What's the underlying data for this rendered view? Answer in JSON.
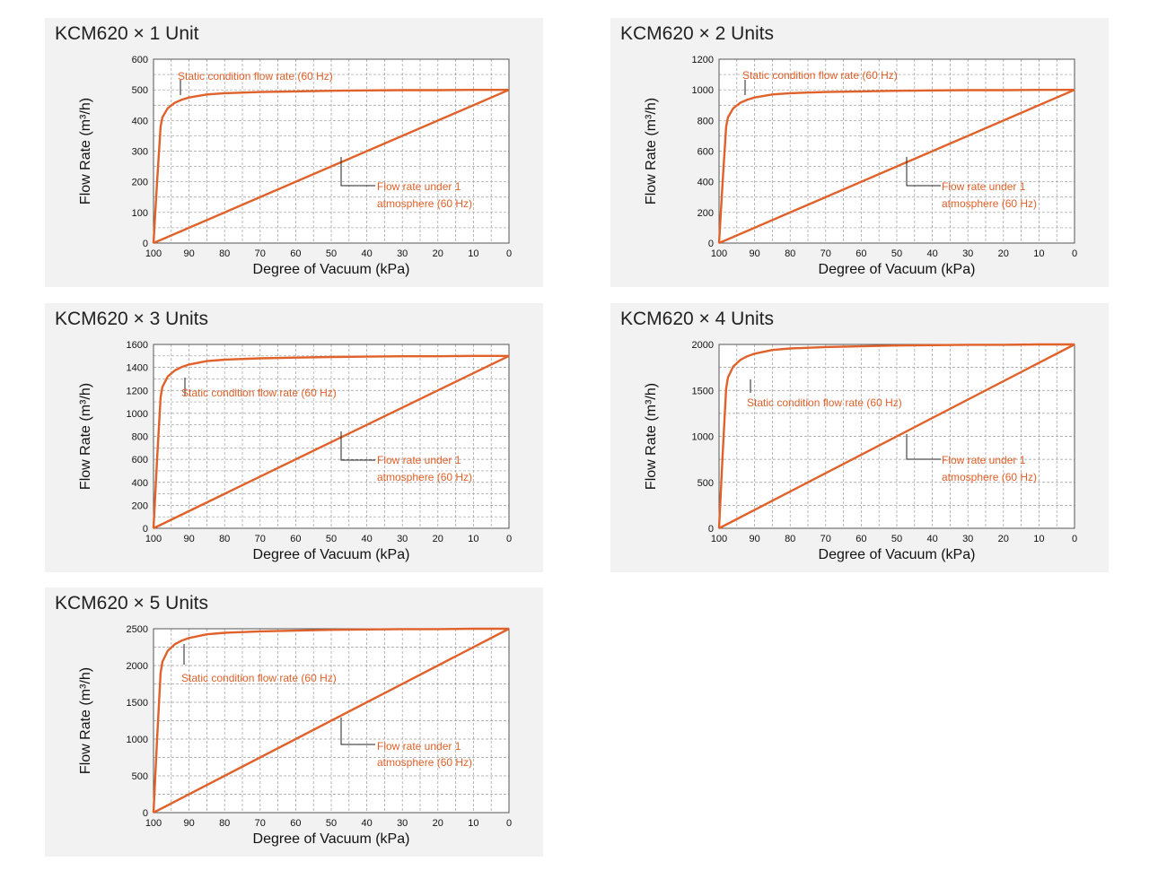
{
  "colors": {
    "curve": "#e0612a",
    "grid": "#9a9a9a",
    "panel_bg": "#f2f2f2",
    "plot_bg": "#ffffff"
  },
  "chart_data": [
    {
      "type": "line",
      "title": "KCM620 × 1 Unit",
      "xlabel": "Degree of Vacuum (kPa)",
      "ylabel": "Flow Rate (m³/h)",
      "xlim": [
        100,
        0
      ],
      "ylim": [
        0,
        600
      ],
      "x_ticks": [
        100,
        90,
        80,
        70,
        60,
        50,
        40,
        30,
        20,
        10,
        0
      ],
      "y_ticks": [
        0,
        100,
        200,
        300,
        400,
        500,
        600
      ],
      "grid": true,
      "series": [
        {
          "name": "Static condition flow rate (60 Hz)",
          "x": [
            100,
            99,
            98,
            97.5,
            96,
            94,
            92,
            90,
            85,
            80,
            70,
            60,
            50,
            40,
            30,
            20,
            10,
            0
          ],
          "y": [
            0,
            200,
            380,
            410,
            440,
            458,
            468,
            475,
            485,
            489,
            493,
            495,
            497,
            498,
            499,
            499,
            500,
            500
          ]
        },
        {
          "name": "Flow rate under 1 atmosphere (60 Hz)",
          "x": [
            100,
            0
          ],
          "y": [
            0,
            500
          ]
        }
      ],
      "annotations": [
        {
          "text": "Static condition flow rate (60 Hz)"
        },
        {
          "text": "Flow rate under 1",
          "text2": "atmosphere (60 Hz)"
        }
      ]
    },
    {
      "type": "line",
      "title": "KCM620 × 2 Units",
      "xlabel": "Degree of Vacuum (kPa)",
      "ylabel": "Flow Rate (m³/h)",
      "xlim": [
        100,
        0
      ],
      "ylim": [
        0,
        1200
      ],
      "x_ticks": [
        100,
        90,
        80,
        70,
        60,
        50,
        40,
        30,
        20,
        10,
        0
      ],
      "y_ticks": [
        0,
        200,
        400,
        600,
        800,
        1000,
        1200
      ],
      "grid": true,
      "series": [
        {
          "name": "Static condition flow rate (60 Hz)",
          "x": [
            100,
            99,
            98,
            97.5,
            96,
            94,
            92,
            90,
            85,
            80,
            70,
            60,
            50,
            40,
            30,
            20,
            10,
            0
          ],
          "y": [
            0,
            400,
            760,
            820,
            880,
            916,
            936,
            950,
            970,
            978,
            986,
            990,
            994,
            996,
            998,
            998,
            1000,
            1000
          ]
        },
        {
          "name": "Flow rate under 1 atmosphere (60 Hz)",
          "x": [
            100,
            0
          ],
          "y": [
            0,
            1000
          ]
        }
      ],
      "annotations": [
        {
          "text": "Static condition flow rate (60 Hz)"
        },
        {
          "text": "Flow rate under 1",
          "text2": "atmosphere (60 Hz)"
        }
      ]
    },
    {
      "type": "line",
      "title": "KCM620 × 3 Units",
      "xlabel": "Degree of Vacuum (kPa)",
      "ylabel": "Flow Rate (m³/h)",
      "xlim": [
        100,
        0
      ],
      "ylim": [
        0,
        1600
      ],
      "x_ticks": [
        100,
        90,
        80,
        70,
        60,
        50,
        40,
        30,
        20,
        10,
        0
      ],
      "y_ticks": [
        0,
        200,
        400,
        600,
        800,
        1000,
        1200,
        1400,
        1600
      ],
      "grid": true,
      "series": [
        {
          "name": "Static condition flow rate (60 Hz)",
          "x": [
            100,
            99,
            98,
            97.5,
            96,
            94,
            92,
            90,
            85,
            80,
            70,
            60,
            50,
            40,
            30,
            20,
            10,
            0
          ],
          "y": [
            0,
            600,
            1140,
            1230,
            1320,
            1374,
            1404,
            1425,
            1455,
            1467,
            1479,
            1485,
            1491,
            1494,
            1497,
            1497,
            1500,
            1500
          ]
        },
        {
          "name": "Flow rate under 1 atmosphere (60 Hz)",
          "x": [
            100,
            0
          ],
          "y": [
            0,
            1500
          ]
        }
      ],
      "annotations": [
        {
          "text": "Static condition flow rate (60 Hz)"
        },
        {
          "text": "Flow rate under 1",
          "text2": "atmosphere (60 Hz)"
        }
      ]
    },
    {
      "type": "line",
      "title": "KCM620 × 4 Units",
      "xlabel": "Degree of Vacuum (kPa)",
      "ylabel": "Flow Rate (m³/h)",
      "xlim": [
        100,
        0
      ],
      "ylim": [
        0,
        2000
      ],
      "x_ticks": [
        100,
        90,
        80,
        70,
        60,
        50,
        40,
        30,
        20,
        10,
        0
      ],
      "y_ticks": [
        0,
        500,
        1000,
        1500,
        2000
      ],
      "grid": true,
      "series": [
        {
          "name": "Static condition flow rate (60 Hz)",
          "x": [
            100,
            99,
            98,
            97.5,
            96,
            94,
            92,
            90,
            85,
            80,
            70,
            60,
            50,
            40,
            30,
            20,
            10,
            0
          ],
          "y": [
            0,
            800,
            1520,
            1640,
            1760,
            1832,
            1872,
            1900,
            1940,
            1956,
            1972,
            1980,
            1988,
            1992,
            1996,
            1996,
            2000,
            2000
          ]
        },
        {
          "name": "Flow rate under 1 atmosphere (60 Hz)",
          "x": [
            100,
            0
          ],
          "y": [
            0,
            2000
          ]
        }
      ],
      "annotations": [
        {
          "text": "Static condition flow rate (60 Hz)"
        },
        {
          "text": "Flow rate under 1",
          "text2": "atmosphere (60 Hz)"
        }
      ]
    },
    {
      "type": "line",
      "title": "KCM620 × 5 Units",
      "xlabel": "Degree of Vacuum (kPa)",
      "ylabel": "Flow Rate (m³/h)",
      "xlim": [
        100,
        0
      ],
      "ylim": [
        0,
        2500
      ],
      "x_ticks": [
        100,
        90,
        80,
        70,
        60,
        50,
        40,
        30,
        20,
        10,
        0
      ],
      "y_ticks": [
        0,
        500,
        1000,
        1500,
        2000,
        2500
      ],
      "grid": true,
      "series": [
        {
          "name": "Static condition flow rate (60 Hz)",
          "x": [
            100,
            99,
            98,
            97.5,
            96,
            94,
            92,
            90,
            85,
            80,
            70,
            60,
            50,
            40,
            30,
            20,
            10,
            0
          ],
          "y": [
            0,
            1000,
            1900,
            2050,
            2200,
            2290,
            2340,
            2375,
            2425,
            2445,
            2465,
            2475,
            2485,
            2490,
            2495,
            2495,
            2500,
            2500
          ]
        },
        {
          "name": "Flow rate under 1 atmosphere (60 Hz)",
          "x": [
            100,
            0
          ],
          "y": [
            0,
            2500
          ]
        }
      ],
      "annotations": [
        {
          "text": "Static condition flow rate (60 Hz)"
        },
        {
          "text": "Flow rate under 1",
          "text2": "atmosphere (60 Hz)"
        }
      ]
    }
  ]
}
